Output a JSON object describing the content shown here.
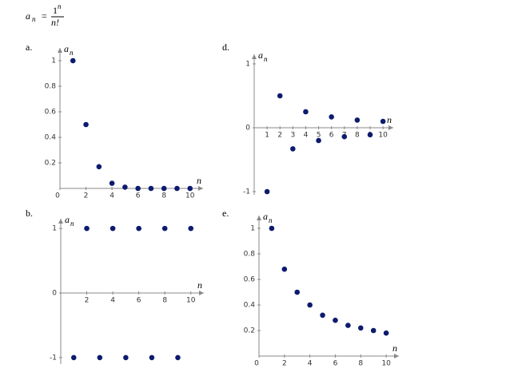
{
  "formula": {
    "lhs": "a",
    "lhs_sub": "n",
    "equals": "=",
    "numerator": "1",
    "numerator_sup": "n",
    "denominator": "n!"
  },
  "chart_data": [
    {
      "type": "scatter",
      "label": "a.",
      "y_label": "a",
      "y_label_sub": "n",
      "x_label": "n",
      "color": "#0d1b6e",
      "x": [
        1,
        2,
        3,
        4,
        5,
        6,
        7,
        8,
        9,
        10
      ],
      "values": [
        1,
        0.5,
        0.17,
        0.04,
        0.01,
        0,
        0,
        0,
        0,
        0
      ],
      "xlim": [
        0,
        11
      ],
      "ylim": [
        0,
        1.1
      ],
      "xticks": [
        0,
        2,
        4,
        6,
        8,
        10
      ],
      "yticks": [
        0.2,
        0.4,
        0.6,
        0.8,
        1
      ]
    },
    {
      "type": "scatter",
      "label": "d.",
      "y_label": "a",
      "y_label_sub": "n",
      "x_label": "n",
      "color": "#0d1b6e",
      "x": [
        1,
        2,
        3,
        4,
        5,
        6,
        7,
        8,
        9,
        10
      ],
      "values": [
        -1,
        0.5,
        -0.33,
        0.25,
        -0.2,
        0.17,
        -0.14,
        0.12,
        -0.11,
        0.1
      ],
      "xlim": [
        0,
        10.8
      ],
      "ylim": [
        -1.05,
        1.15
      ],
      "xticks": [
        1,
        2,
        3,
        4,
        5,
        6,
        7,
        8,
        9,
        10
      ],
      "yticks": [
        -1,
        0,
        1
      ]
    },
    {
      "type": "scatter",
      "label": "b.",
      "y_label": "a",
      "y_label_sub": "n",
      "x_label": "n",
      "color": "#0d1b6e",
      "x": [
        1,
        2,
        3,
        4,
        5,
        6,
        7,
        8,
        9,
        10
      ],
      "values": [
        -1,
        1,
        -1,
        1,
        -1,
        1,
        -1,
        1,
        -1,
        1
      ],
      "xlim": [
        0,
        11
      ],
      "ylim": [
        -1.1,
        1.15
      ],
      "xticks": [
        2,
        4,
        6,
        8,
        10
      ],
      "yticks": [
        -1,
        0,
        1
      ]
    },
    {
      "type": "scatter",
      "label": "e.",
      "y_label": "a",
      "y_label_sub": "n",
      "x_label": "n",
      "color": "#0d1b6e",
      "x": [
        1,
        2,
        3,
        4,
        5,
        6,
        7,
        8,
        9,
        10
      ],
      "values": [
        1,
        0.68,
        0.5,
        0.4,
        0.32,
        0.28,
        0.24,
        0.22,
        0.2,
        0.18
      ],
      "xlim": [
        0,
        11
      ],
      "ylim": [
        0,
        1.1
      ],
      "xticks": [
        0,
        2,
        4,
        6,
        8,
        10
      ],
      "yticks": [
        0.2,
        0.4,
        0.6,
        0.8,
        1
      ]
    }
  ]
}
